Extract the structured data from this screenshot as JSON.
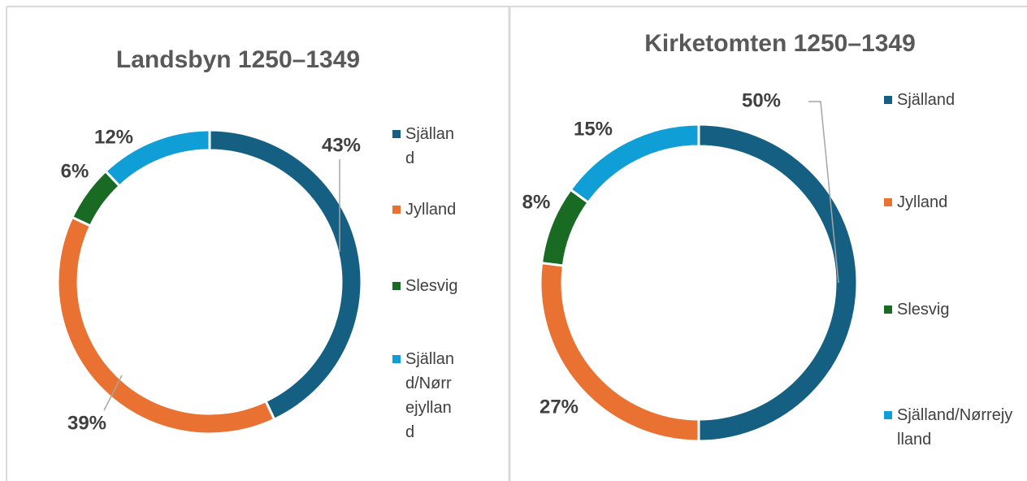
{
  "chart_data": [
    {
      "type": "donut",
      "title": "Landsbyn 1250–1349",
      "categories": [
        "Själland",
        "Jylland",
        "Slesvig",
        "Själland/Nørrejylland"
      ],
      "values": [
        43,
        39,
        6,
        12
      ],
      "value_labels": [
        "43%",
        "39%",
        "6%",
        "12%"
      ],
      "colors": [
        "#156082",
        "#e97132",
        "#196b24",
        "#0f9ed5"
      ],
      "legend": "right"
    },
    {
      "type": "donut",
      "title": "Kirketomten 1250–1349",
      "categories": [
        "Själland",
        "Jylland",
        "Slesvig",
        "Själland/Nørrejylland"
      ],
      "values": [
        50,
        27,
        8,
        15
      ],
      "value_labels": [
        "50%",
        "27%",
        "8%",
        "15%"
      ],
      "colors": [
        "#156082",
        "#e97132",
        "#196b24",
        "#0f9ed5"
      ],
      "legend": "right"
    }
  ]
}
